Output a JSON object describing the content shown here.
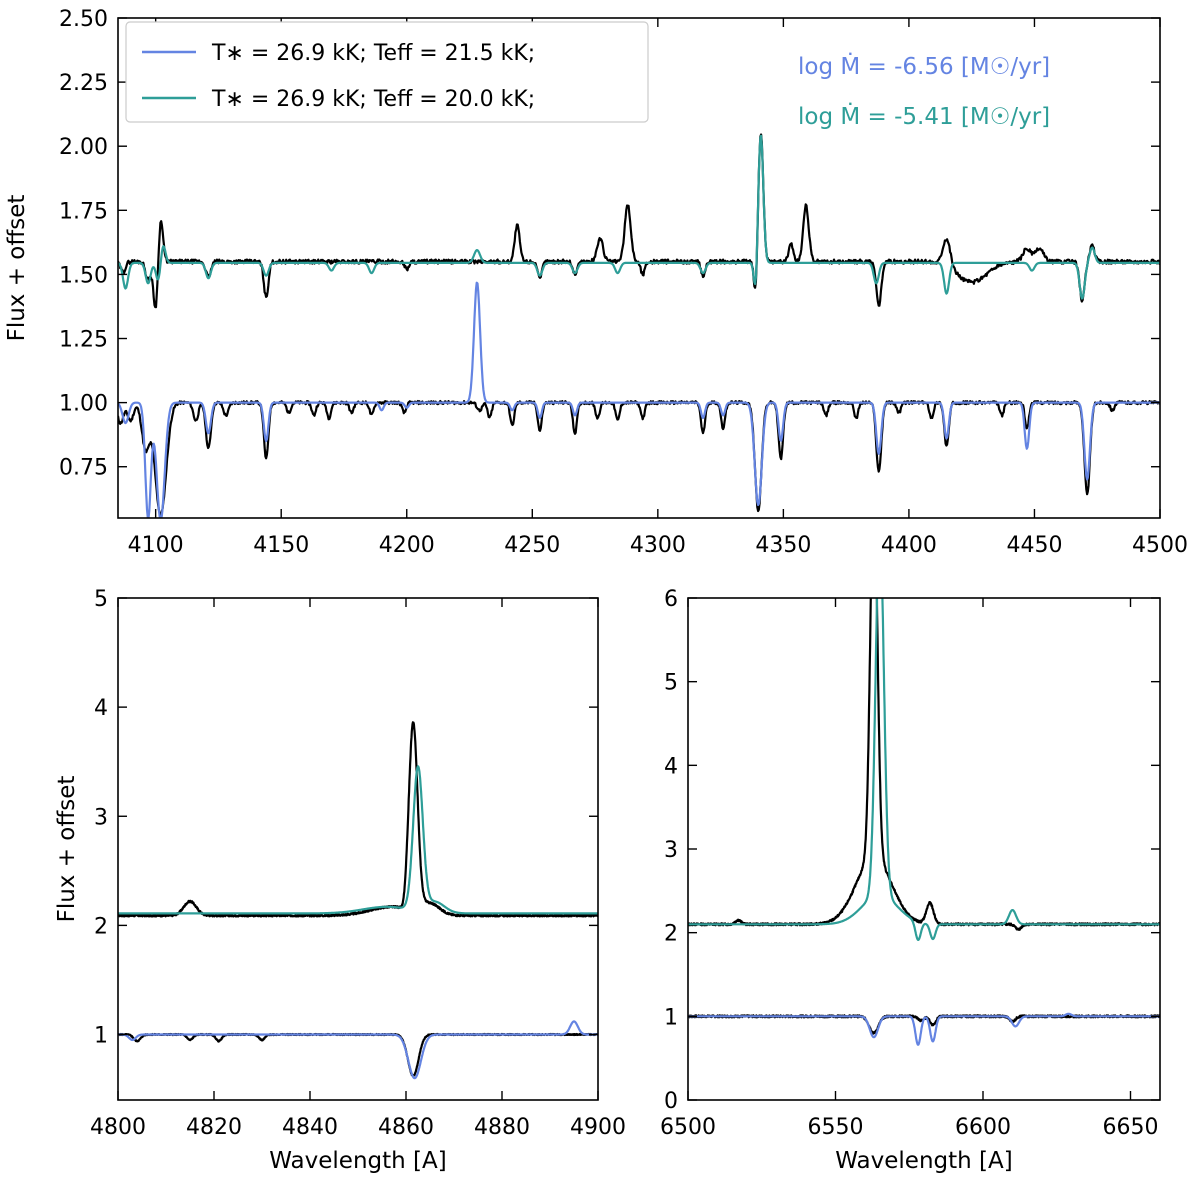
{
  "colors": {
    "observed": "#000000",
    "model_a": "#6484e2",
    "model_b": "#2e9e98"
  },
  "chart_data": [
    {
      "type": "line",
      "panel": "top",
      "xlim": [
        4085,
        4500
      ],
      "ylim": [
        0.55,
        2.5
      ],
      "xticks": [
        4100,
        4150,
        4200,
        4250,
        4300,
        4350,
        4400,
        4450,
        4500
      ],
      "xtick_labels": [
        "4100",
        "4150",
        "4200",
        "4250",
        "4300",
        "4350",
        "4400",
        "4450",
        "4500"
      ],
      "yticks": [
        0.75,
        1.0,
        1.25,
        1.5,
        1.75,
        2.0,
        2.25,
        2.5
      ],
      "ytick_labels": [
        "0.75",
        "1.00",
        "1.25",
        "1.50",
        "1.75",
        "2.00",
        "2.25",
        "2.50"
      ],
      "xlabel": "",
      "ylabel": "Flux + offset",
      "legend": {
        "position": "upper-left",
        "entries": [
          {
            "text": "T∗ = 26.9 kK; Teff = 21.5 kK;",
            "color": "#6484e2"
          },
          {
            "text": "T∗ = 26.9 kK; Teff = 20.0 kK;",
            "color": "#2e9e98"
          }
        ]
      },
      "annotations": [
        {
          "text": "log Ṁ = -6.56 [M☉/yr]",
          "color": "#6484e2"
        },
        {
          "text": "log Ṁ = -5.41 [M☉/yr]",
          "color": "#2e9e98"
        }
      ],
      "series": [
        {
          "name": "Observed (lower)",
          "color": "#000000",
          "baseline": 1.0,
          "noise": 0.006,
          "seed": 11,
          "features": [
            [
              4086,
              -0.08,
              1.2
            ],
            [
              4090,
              -0.07,
              1.2
            ],
            [
              4096,
              -0.18,
              1.5
            ],
            [
              4102,
              -0.44,
              2.2
            ],
            [
              4116,
              -0.07,
              1.0
            ],
            [
              4121,
              -0.18,
              1.0
            ],
            [
              4128,
              -0.05,
              1.0
            ],
            [
              4144,
              -0.22,
              0.9
            ],
            [
              4153,
              -0.04,
              0.8
            ],
            [
              4163,
              -0.05,
              0.8
            ],
            [
              4169,
              -0.06,
              0.8
            ],
            [
              4178,
              -0.04,
              0.8
            ],
            [
              4186,
              -0.05,
              0.8
            ],
            [
              4199,
              -0.04,
              0.8
            ],
            [
              4229,
              -0.03,
              1.0
            ],
            [
              4233,
              -0.06,
              0.8
            ],
            [
              4242,
              -0.09,
              0.8
            ],
            [
              4253,
              -0.11,
              0.8
            ],
            [
              4267,
              -0.12,
              0.8
            ],
            [
              4276,
              -0.06,
              0.8
            ],
            [
              4284,
              -0.07,
              0.8
            ],
            [
              4294,
              -0.06,
              0.8
            ],
            [
              4318,
              -0.12,
              0.8
            ],
            [
              4326,
              -0.1,
              0.8
            ],
            [
              4340,
              -0.42,
              1.3
            ],
            [
              4349,
              -0.22,
              0.9
            ],
            [
              4367,
              -0.05,
              0.8
            ],
            [
              4379,
              -0.06,
              0.8
            ],
            [
              4388,
              -0.27,
              1.0
            ],
            [
              4396,
              -0.04,
              0.8
            ],
            [
              4409,
              -0.06,
              0.8
            ],
            [
              4415,
              -0.17,
              0.9
            ],
            [
              4437,
              -0.05,
              0.8
            ],
            [
              4447,
              -0.1,
              0.8
            ],
            [
              4471,
              -0.36,
              1.1
            ],
            [
              4481,
              -0.03,
              0.8
            ]
          ]
        },
        {
          "name": "Model A (lower)",
          "color": "#6484e2",
          "baseline": 1.0,
          "noise": 0,
          "seed": 0,
          "features": [
            [
              4088,
              -0.08,
              1.2
            ],
            [
              4097,
              -0.45,
              1.1
            ],
            [
              4102,
              -0.46,
              1.6
            ],
            [
              4121,
              -0.12,
              1.0
            ],
            [
              4144,
              -0.15,
              0.9
            ],
            [
              4190,
              -0.03,
              0.8
            ],
            [
              4200,
              -0.02,
              0.8
            ],
            [
              4228,
              0.47,
              1.2
            ],
            [
              4242,
              -0.03,
              0.8
            ],
            [
              4253,
              -0.06,
              0.8
            ],
            [
              4267,
              -0.05,
              0.8
            ],
            [
              4318,
              -0.06,
              0.8
            ],
            [
              4326,
              -0.05,
              0.8
            ],
            [
              4340,
              -0.4,
              1.4
            ],
            [
              4349,
              -0.15,
              0.9
            ],
            [
              4388,
              -0.2,
              1.0
            ],
            [
              4415,
              -0.14,
              0.9
            ],
            [
              4447,
              -0.18,
              0.9
            ],
            [
              4471,
              -0.3,
              1.1
            ]
          ]
        },
        {
          "name": "Observed (upper)",
          "color": "#000000",
          "baseline": 1.55,
          "noise": 0.008,
          "seed": 29,
          "features": [
            [
              4087,
              -0.04,
              1.0
            ],
            [
              4097,
              -0.07,
              1.0
            ],
            [
              4100,
              -0.19,
              0.9
            ],
            [
              4102,
              0.17,
              0.9
            ],
            [
              4121,
              -0.06,
              1.0
            ],
            [
              4144,
              -0.14,
              0.9
            ],
            [
              4200,
              -0.03,
              0.8
            ],
            [
              4244,
              0.14,
              1.0
            ],
            [
              4253,
              -0.07,
              0.8
            ],
            [
              4267,
              -0.05,
              0.8
            ],
            [
              4277,
              0.09,
              1.2
            ],
            [
              4288,
              0.22,
              1.2
            ],
            [
              4294,
              -0.05,
              0.8
            ],
            [
              4318,
              -0.06,
              0.8
            ],
            [
              4339,
              -0.15,
              0.7
            ],
            [
              4341,
              0.5,
              1.0
            ],
            [
              4353,
              0.07,
              0.9
            ],
            [
              4359,
              0.22,
              1.1
            ],
            [
              4388,
              -0.17,
              1.0
            ],
            [
              4415,
              0.11,
              1.5
            ],
            [
              4425,
              -0.08,
              6.0
            ],
            [
              4447,
              0.05,
              1.6
            ],
            [
              4452,
              0.05,
              1.6
            ],
            [
              4469,
              -0.15,
              1.0
            ],
            [
              4473,
              0.06,
              1.0
            ]
          ]
        },
        {
          "name": "Model B (upper)",
          "color": "#2e9e98",
          "baseline": 1.545,
          "noise": 0,
          "seed": 0,
          "features": [
            [
              4088,
              -0.1,
              1.0
            ],
            [
              4097,
              -0.08,
              1.0
            ],
            [
              4101,
              -0.07,
              0.9
            ],
            [
              4103,
              0.07,
              0.9
            ],
            [
              4121,
              -0.06,
              1.0
            ],
            [
              4144,
              -0.05,
              1.0
            ],
            [
              4170,
              -0.03,
              1.0
            ],
            [
              4186,
              -0.04,
              1.0
            ],
            [
              4228,
              0.05,
              1.2
            ],
            [
              4253,
              -0.05,
              1.0
            ],
            [
              4267,
              -0.04,
              1.0
            ],
            [
              4284,
              -0.04,
              1.0
            ],
            [
              4318,
              -0.04,
              1.0
            ],
            [
              4339,
              -0.13,
              0.7
            ],
            [
              4341,
              0.5,
              1.0
            ],
            [
              4387,
              -0.08,
              1.0
            ],
            [
              4415,
              -0.12,
              1.0
            ],
            [
              4449,
              -0.03,
              1.0
            ],
            [
              4469,
              -0.14,
              1.0
            ],
            [
              4473,
              0.06,
              1.0
            ]
          ]
        }
      ]
    },
    {
      "type": "line",
      "panel": "bottom-left",
      "xlim": [
        4800,
        4900
      ],
      "ylim": [
        0.4,
        5.0
      ],
      "xticks": [
        4800,
        4820,
        4840,
        4860,
        4880,
        4900
      ],
      "xtick_labels": [
        "4800",
        "4820",
        "4840",
        "4860",
        "4880",
        "4900"
      ],
      "yticks": [
        1,
        2,
        3,
        4,
        5
      ],
      "ytick_labels": [
        "1",
        "2",
        "3",
        "4",
        "5"
      ],
      "xlabel": "Wavelength [A]",
      "ylabel": "Flux + offset",
      "series": [
        {
          "name": "Observed (lower)",
          "color": "#000000",
          "baseline": 1.0,
          "noise": 0.005,
          "seed": 5,
          "features": [
            [
              4804,
              -0.06,
              0.7
            ],
            [
              4815,
              -0.05,
              0.6
            ],
            [
              4821,
              -0.06,
              0.6
            ],
            [
              4830,
              -0.05,
              0.6
            ],
            [
              4861.5,
              -0.38,
              1.1
            ]
          ]
        },
        {
          "name": "Model A (lower)",
          "color": "#6484e2",
          "baseline": 1.0,
          "noise": 0,
          "seed": 0,
          "features": [
            [
              4803,
              -0.05,
              0.7
            ],
            [
              4861.8,
              -0.4,
              1.3
            ],
            [
              4895,
              0.12,
              0.8
            ]
          ]
        },
        {
          "name": "Observed (upper)",
          "color": "#000000",
          "baseline": 2.09,
          "noise": 0.008,
          "seed": 17,
          "features": [
            [
              4815,
              0.13,
              1.3
            ],
            [
              4857,
              0.08,
              4.5
            ],
            [
              4859.5,
              -0.05,
              0.5
            ],
            [
              4861.5,
              1.7,
              0.9
            ],
            [
              4865,
              0.1,
              2.0
            ]
          ]
        },
        {
          "name": "Model B (upper)",
          "color": "#2e9e98",
          "baseline": 2.11,
          "noise": 0,
          "seed": 0,
          "features": [
            [
              4856,
              0.06,
              5.0
            ],
            [
              4862.5,
              1.3,
              1.0
            ],
            [
              4866,
              0.1,
              2.0
            ]
          ]
        }
      ]
    },
    {
      "type": "line",
      "panel": "bottom-right",
      "xlim": [
        6500,
        6660
      ],
      "ylim": [
        0.0,
        6.0
      ],
      "xticks": [
        6500,
        6550,
        6600,
        6650
      ],
      "xtick_labels": [
        "6500",
        "6550",
        "6600",
        "6650"
      ],
      "yticks": [
        0,
        1,
        2,
        3,
        4,
        5,
        6
      ],
      "ytick_labels": [
        "0",
        "1",
        "2",
        "3",
        "4",
        "5",
        "6"
      ],
      "xlabel": "Wavelength [A]",
      "ylabel": "",
      "series": [
        {
          "name": "Observed (lower)",
          "color": "#000000",
          "baseline": 1.0,
          "noise": 0.012,
          "seed": 7,
          "features": [
            [
              6563,
              -0.2,
              1.5
            ],
            [
              6579,
              -0.05,
              1.0
            ],
            [
              6583,
              -0.1,
              1.0
            ],
            [
              6610,
              -0.06,
              1.0
            ]
          ]
        },
        {
          "name": "Model A (lower)",
          "color": "#6484e2",
          "baseline": 1.0,
          "noise": 0,
          "seed": 0,
          "features": [
            [
              6563,
              -0.25,
              1.4
            ],
            [
              6578,
              -0.34,
              0.9
            ],
            [
              6583,
              -0.3,
              0.9
            ],
            [
              6611,
              -0.12,
              1.2
            ],
            [
              6629,
              0.03,
              1.0
            ]
          ]
        },
        {
          "name": "Observed (upper)",
          "color": "#000000",
          "baseline": 2.1,
          "noise": 0.012,
          "seed": 13,
          "features": [
            [
              6563,
              4.5,
              1.2
            ],
            [
              6563,
              0.8,
              6.0
            ],
            [
              6582,
              0.25,
              1.2
            ],
            [
              6517,
              0.05,
              1.0
            ],
            [
              6612,
              -0.06,
              1.0
            ]
          ]
        },
        {
          "name": "Model B (upper)",
          "color": "#2e9e98",
          "baseline": 2.1,
          "noise": 0,
          "seed": 0,
          "features": [
            [
              6565,
              4.4,
              1.4
            ],
            [
              6565,
              0.35,
              6.0
            ],
            [
              6578,
              -0.22,
              0.9
            ],
            [
              6583,
              -0.18,
              0.9
            ],
            [
              6610,
              0.17,
              1.2
            ]
          ]
        }
      ]
    }
  ]
}
